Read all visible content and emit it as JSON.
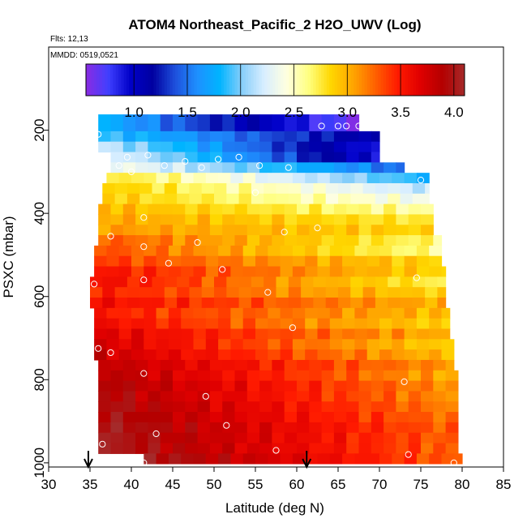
{
  "chart_data": {
    "type": "heatmap",
    "title": "ATOM4 Northeast_Pacific_2 H2O_UWV (Log)",
    "subtitle_flights": "Flts: 12,13",
    "subtitle_dates": "MMDD: 0519,0521",
    "xlabel": "Latitude (deg N)",
    "ylabel": "PSXC (mbar)",
    "xlim": [
      30,
      85
    ],
    "ylim": [
      1010,
      0
    ],
    "x_ticks": [
      "30",
      "35",
      "40",
      "45",
      "50",
      "55",
      "60",
      "65",
      "70",
      "75",
      "80",
      "85"
    ],
    "y_ticks": [
      "200",
      "400",
      "600",
      "800",
      "1000"
    ],
    "colorbar": {
      "range": [
        0.55,
        4.1
      ],
      "ticks": [
        "1.0",
        "1.5",
        "2.0",
        "2.5",
        "3.0",
        "3.5",
        "4.0"
      ],
      "colors": [
        "#8a2be2",
        "#4040ff",
        "#0000c8",
        "#0000a0",
        "#1e50dc",
        "#1e90ff",
        "#00b4ff",
        "#87cefa",
        "#d8eeff",
        "#ffffe0",
        "#ffff80",
        "#ffd700",
        "#ffa500",
        "#ff6000",
        "#ff1a00",
        "#e00000",
        "#b40000",
        "#a52a2a"
      ]
    },
    "rows": [
      {
        "p": 190,
        "lat": [
          36.0,
          67.5
        ],
        "v": [
          1.8,
          0.6
        ]
      },
      {
        "p": 215,
        "lat": [
          36.0,
          70.0
        ],
        "v": [
          1.9,
          1.05
        ]
      },
      {
        "p": 240,
        "lat": [
          36.0,
          70.0
        ],
        "v": [
          2.2,
          0.85
        ]
      },
      {
        "p": 265,
        "lat": [
          37.5,
          70.0
        ],
        "v": [
          2.3,
          0.9
        ]
      },
      {
        "p": 290,
        "lat": [
          37.5,
          73.0
        ],
        "v": [
          2.4,
          1.45
        ]
      },
      {
        "p": 315,
        "lat": [
          37.0,
          76.0
        ],
        "v": [
          2.8,
          1.8
        ]
      },
      {
        "p": 340,
        "lat": [
          36.5,
          76.0
        ],
        "v": [
          2.9,
          2.15
        ]
      },
      {
        "p": 365,
        "lat": [
          36.5,
          76.0
        ],
        "v": [
          2.9,
          2.35
        ]
      },
      {
        "p": 390,
        "lat": [
          36.0,
          76.5
        ],
        "v": [
          3.0,
          2.55
        ]
      },
      {
        "p": 415,
        "lat": [
          36.0,
          76.5
        ],
        "v": [
          3.05,
          2.75
        ]
      },
      {
        "p": 440,
        "lat": [
          36.0,
          76.5
        ],
        "v": [
          3.1,
          2.85
        ]
      },
      {
        "p": 465,
        "lat": [
          36.0,
          77.5
        ],
        "v": [
          3.3,
          2.65
        ]
      },
      {
        "p": 490,
        "lat": [
          35.5,
          77.5
        ],
        "v": [
          3.35,
          2.6
        ]
      },
      {
        "p": 515,
        "lat": [
          35.5,
          77.5
        ],
        "v": [
          3.4,
          2.85
        ]
      },
      {
        "p": 540,
        "lat": [
          35.5,
          78.0
        ],
        "v": [
          3.55,
          2.85
        ]
      },
      {
        "p": 565,
        "lat": [
          35.0,
          78.0
        ],
        "v": [
          3.6,
          2.7
        ]
      },
      {
        "p": 590,
        "lat": [
          35.0,
          78.0
        ],
        "v": [
          3.5,
          2.85
        ]
      },
      {
        "p": 615,
        "lat": [
          35.0,
          78.0
        ],
        "v": [
          3.6,
          3.0
        ]
      },
      {
        "p": 640,
        "lat": [
          35.5,
          78.5
        ],
        "v": [
          3.5,
          2.95
        ]
      },
      {
        "p": 665,
        "lat": [
          35.5,
          78.5
        ],
        "v": [
          3.6,
          2.85
        ]
      },
      {
        "p": 690,
        "lat": [
          35.5,
          78.5
        ],
        "v": [
          3.7,
          3.0
        ]
      },
      {
        "p": 715,
        "lat": [
          35.5,
          79.0
        ],
        "v": [
          3.75,
          2.85
        ]
      },
      {
        "p": 740,
        "lat": [
          35.5,
          79.0
        ],
        "v": [
          3.8,
          2.95
        ]
      },
      {
        "p": 765,
        "lat": [
          36.0,
          79.0
        ],
        "v": [
          3.85,
          3.1
        ]
      },
      {
        "p": 790,
        "lat": [
          36.0,
          79.5
        ],
        "v": [
          3.9,
          3.0
        ]
      },
      {
        "p": 815,
        "lat": [
          36.0,
          79.5
        ],
        "v": [
          3.95,
          3.1
        ]
      },
      {
        "p": 840,
        "lat": [
          36.0,
          79.5
        ],
        "v": [
          3.95,
          3.1
        ]
      },
      {
        "p": 865,
        "lat": [
          36.0,
          79.5
        ],
        "v": [
          4.0,
          3.15
        ]
      },
      {
        "p": 890,
        "lat": [
          36.0,
          79.5
        ],
        "v": [
          4.0,
          3.2
        ]
      },
      {
        "p": 915,
        "lat": [
          36.0,
          79.5
        ],
        "v": [
          4.05,
          3.25
        ]
      },
      {
        "p": 940,
        "lat": [
          36.0,
          79.5
        ],
        "v": [
          4.05,
          3.25
        ]
      },
      {
        "p": 965,
        "lat": [
          36.0,
          79.5
        ],
        "v": [
          4.05,
          3.25
        ]
      },
      {
        "p": 990,
        "lat": [
          41.5,
          80.0
        ],
        "v": [
          4.05,
          3.25
        ]
      }
    ],
    "obs_points": [
      [
        36.0,
        210
      ],
      [
        39.5,
        265
      ],
      [
        38.5,
        285
      ],
      [
        40.0,
        300
      ],
      [
        42.0,
        260
      ],
      [
        44.0,
        285
      ],
      [
        46.5,
        275
      ],
      [
        48.5,
        290
      ],
      [
        50.5,
        270
      ],
      [
        53.0,
        265
      ],
      [
        55.5,
        285
      ],
      [
        59.0,
        290
      ],
      [
        63.0,
        190
      ],
      [
        65.0,
        190
      ],
      [
        66.0,
        190
      ],
      [
        67.5,
        190
      ],
      [
        75.0,
        320
      ],
      [
        55.0,
        350
      ],
      [
        41.5,
        410
      ],
      [
        37.5,
        455
      ],
      [
        41.5,
        480
      ],
      [
        48.0,
        470
      ],
      [
        58.5,
        445
      ],
      [
        62.5,
        435
      ],
      [
        44.5,
        520
      ],
      [
        51.0,
        535
      ],
      [
        41.5,
        560
      ],
      [
        35.5,
        570
      ],
      [
        74.5,
        555
      ],
      [
        56.5,
        590
      ],
      [
        59.5,
        675
      ],
      [
        36.0,
        725
      ],
      [
        37.5,
        735
      ],
      [
        41.5,
        785
      ],
      [
        49.0,
        840
      ],
      [
        51.5,
        910
      ],
      [
        73.0,
        805
      ],
      [
        43.0,
        930
      ],
      [
        36.5,
        955
      ],
      [
        57.5,
        970
      ],
      [
        73.5,
        980
      ],
      [
        79.0,
        1000
      ],
      [
        41.5,
        1000
      ]
    ],
    "flight_arrows_lat": [
      34.8,
      61.2
    ]
  }
}
